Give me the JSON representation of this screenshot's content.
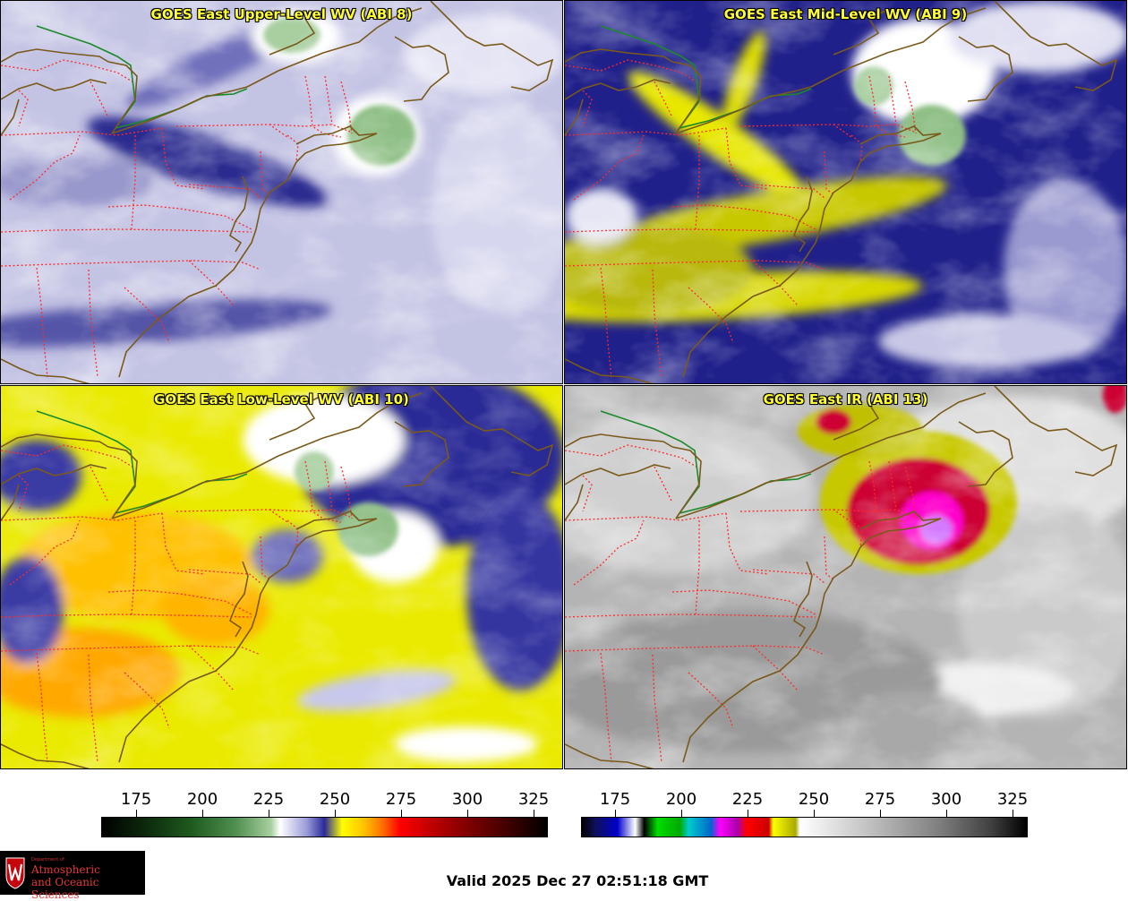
{
  "panels": [
    {
      "title": "GOES East Upper-Level WV (ABI 8)"
    },
    {
      "title": "GOES East Mid-Level WV (ABI 9)"
    },
    {
      "title": "GOES East Low-Level WV (ABI 10)"
    },
    {
      "title": "GOES East IR (ABI 13)"
    }
  ],
  "colorbars": [
    {
      "name": "water-vapor",
      "ticks": [
        "175",
        "200",
        "225",
        "250",
        "275",
        "300",
        "325"
      ]
    },
    {
      "name": "infrared",
      "ticks": [
        "175",
        "200",
        "225",
        "250",
        "275",
        "300",
        "325"
      ]
    }
  ],
  "logo": {
    "dept_line": "Department of",
    "line1": "Atmospheric",
    "line2": "and Oceanic Sciences"
  },
  "valid_time": "Valid 2025 Dec 27 02:51:18 GMT",
  "colors": {
    "title_text": "#ffff33",
    "state_borders": "#ff2a2a",
    "coastline": "#7a5a1a",
    "intl_border": "#1a8a2a"
  }
}
